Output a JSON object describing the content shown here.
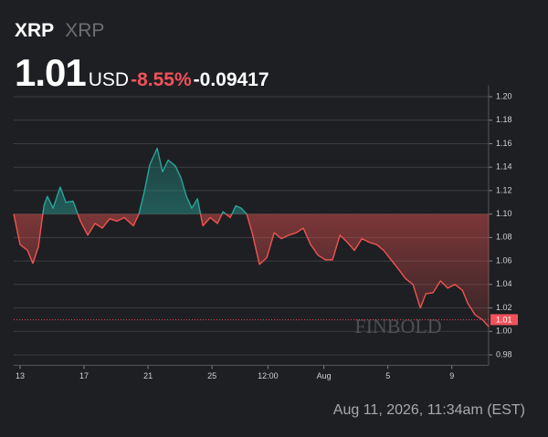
{
  "header": {
    "symbol": "XRP",
    "name": "XRP",
    "price": "1.01",
    "currency": "USD",
    "change_percent": "-8.55%",
    "change": "-0.09417"
  },
  "footer": {
    "timestamp": "Aug 11, 2026, 11:34am (EST)"
  },
  "chart_data": {
    "type": "line",
    "watermark": "FINBOLD",
    "x": [
      -0.4,
      0.0,
      0.46,
      0.8,
      1.14,
      1.49,
      1.71,
      2.06,
      2.51,
      2.86,
      3.31,
      3.77,
      4.23,
      4.69,
      5.14,
      5.6,
      6.06,
      6.51,
      7.09,
      7.43,
      7.77,
      8.11,
      8.57,
      8.91,
      9.26,
      9.71,
      10.06,
      10.4,
      10.74,
      11.09,
      11.43,
      11.89,
      12.34,
      12.69,
      13.14,
      13.49,
      13.83,
      14.17,
      14.51,
      14.97,
      15.43,
      15.89,
      16.34,
      16.8,
      17.26,
      17.71,
      18.17,
      18.63,
      19.09,
      19.54,
      20.0,
      20.46,
      20.91,
      21.37,
      21.83,
      22.29,
      22.74,
      23.2,
      23.66,
      24.11,
      24.57,
      25.03,
      25.37,
      25.83,
      26.29,
      26.74,
      27.2,
      27.66,
      28.0,
      28.46,
      28.91,
      29.31
    ],
    "series": [
      {
        "name": "XRP",
        "up_color": "#26a69a",
        "down_color": "#ef5350",
        "values": [
          1.1,
          1.074,
          1.069,
          1.058,
          1.072,
          1.107,
          1.115,
          1.105,
          1.123,
          1.11,
          1.111,
          1.094,
          1.082,
          1.092,
          1.088,
          1.096,
          1.094,
          1.097,
          1.09,
          1.1,
          1.119,
          1.142,
          1.156,
          1.136,
          1.146,
          1.141,
          1.131,
          1.115,
          1.105,
          1.113,
          1.09,
          1.097,
          1.092,
          1.102,
          1.097,
          1.107,
          1.105,
          1.1,
          1.084,
          1.057,
          1.063,
          1.084,
          1.079,
          1.082,
          1.084,
          1.088,
          1.074,
          1.065,
          1.061,
          1.061,
          1.082,
          1.076,
          1.069,
          1.079,
          1.076,
          1.074,
          1.069,
          1.061,
          1.053,
          1.045,
          1.04,
          1.02,
          1.032,
          1.033,
          1.043,
          1.037,
          1.04,
          1.035,
          1.024,
          1.014,
          1.01,
          1.004
        ]
      }
    ],
    "baseline": 1.1,
    "marker": {
      "value": 1.01,
      "label": "1.01",
      "color": "#f0525a"
    },
    "xlim": [
      -0.4,
      29.3
    ],
    "xticks": [
      {
        "value": 0,
        "label": "13"
      },
      {
        "value": 4,
        "label": "17"
      },
      {
        "value": 8,
        "label": "21"
      },
      {
        "value": 12,
        "label": "25"
      },
      {
        "value": 15.5,
        "label": "12:00"
      },
      {
        "value": 19,
        "label": "Aug"
      },
      {
        "value": 23,
        "label": "5"
      },
      {
        "value": 27,
        "label": "9"
      }
    ],
    "ylim": [
      0.975,
      1.205
    ],
    "yticks": [
      0.98,
      {
        "value": 1.0,
        "label": "1.00"
      },
      1.02,
      1.04,
      1.06,
      1.08,
      {
        "value": 1.1,
        "label": "1.10"
      },
      1.12,
      1.14,
      1.16,
      1.18,
      {
        "value": 1.2,
        "label": "1.20"
      }
    ],
    "grid": true
  }
}
